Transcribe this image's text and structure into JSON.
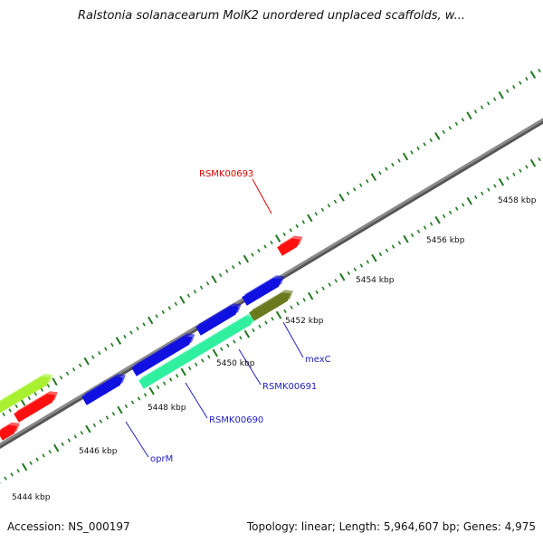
{
  "title": "Ralstonia solanacearum MolK2 unordered unplaced scaffolds, w...",
  "footer": {
    "accession": "Accession: NS_000197",
    "summary": "Topology: linear; Length: 5,964,607 bp; Genes: 4,975"
  },
  "map": {
    "backbone_color": "#8a8a8a",
    "tick_color": "#1f7a1f",
    "kbp_labels": [
      "5444 kbp",
      "5446 kbp",
      "5448 kbp",
      "5450 kbp",
      "5452 kbp",
      "5454 kbp",
      "5456 kbp",
      "5458 kbp"
    ],
    "gene_labels": [
      {
        "text": "RSMK00693",
        "color": "#e00000"
      },
      {
        "text": "mexC",
        "color": "#2020c0"
      },
      {
        "text": "RSMK00691",
        "color": "#2020c0"
      },
      {
        "text": "RSMK00690",
        "color": "#2020c0"
      },
      {
        "text": "oprM",
        "color": "#2020c0"
      }
    ],
    "feature_colors": {
      "red": "#ff1010",
      "blue": "#1010e0",
      "teal": "#30f0a0",
      "olive": "#6b7a1f",
      "lime": "#a8f030"
    }
  }
}
